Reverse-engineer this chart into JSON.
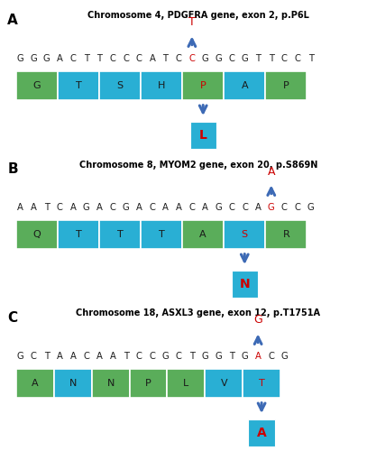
{
  "panels": [
    {
      "label": "A",
      "title": "Chromosome 4, PDGFRA gene, exon 2, p.P6L",
      "sequence": [
        "G",
        "G",
        "G",
        "A",
        "C",
        "T",
        "T",
        "C",
        "C",
        "C",
        "A",
        "T",
        "C",
        "C",
        "G",
        "G",
        "C",
        "G",
        "T",
        "T",
        "C",
        "C",
        "T"
      ],
      "mut_index": 13,
      "mut_base_new": "T",
      "amino_acids": [
        "G",
        "T",
        "S",
        "H",
        "P",
        "A",
        "P"
      ],
      "aa_colors": [
        "green",
        "blue",
        "blue",
        "blue",
        "green",
        "blue",
        "green"
      ],
      "mut_aa_index": 4,
      "result_aa": "L"
    },
    {
      "label": "B",
      "title": "Chromosome 8, MYOM2 gene, exon 20, p.S869N",
      "sequence": [
        "A",
        "A",
        "T",
        "C",
        "A",
        "G",
        "A",
        "C",
        "G",
        "A",
        "C",
        "A",
        "A",
        "C",
        "A",
        "G",
        "C",
        "C",
        "A",
        "G",
        "C",
        "C",
        "G"
      ],
      "mut_index": 19,
      "mut_base_new": "A",
      "amino_acids": [
        "Q",
        "T",
        "T",
        "T",
        "A",
        "S",
        "R"
      ],
      "aa_colors": [
        "green",
        "blue",
        "blue",
        "blue",
        "green",
        "blue",
        "green"
      ],
      "mut_aa_index": 5,
      "result_aa": "N"
    },
    {
      "label": "C",
      "title": "Chromosome 18, ASXL3 gene, exon 12, p.T1751A",
      "sequence": [
        "G",
        "C",
        "T",
        "A",
        "A",
        "C",
        "A",
        "A",
        "T",
        "C",
        "C",
        "G",
        "C",
        "T",
        "G",
        "G",
        "T",
        "G",
        "A",
        "C",
        "G"
      ],
      "mut_index": 18,
      "mut_base_new": "G",
      "amino_acids": [
        "A",
        "N",
        "N",
        "P",
        "L",
        "V",
        "T"
      ],
      "aa_colors": [
        "green",
        "blue",
        "green",
        "green",
        "green",
        "blue",
        "blue"
      ],
      "mut_aa_index": 6,
      "result_aa": "A"
    }
  ],
  "green_color": "#5aad5a",
  "blue_color": "#29afd4",
  "arrow_color": "#3d6ab5",
  "text_color_normal": "#1a1a1a",
  "text_color_mut": "#cc0000",
  "bg_color": "#ffffff"
}
